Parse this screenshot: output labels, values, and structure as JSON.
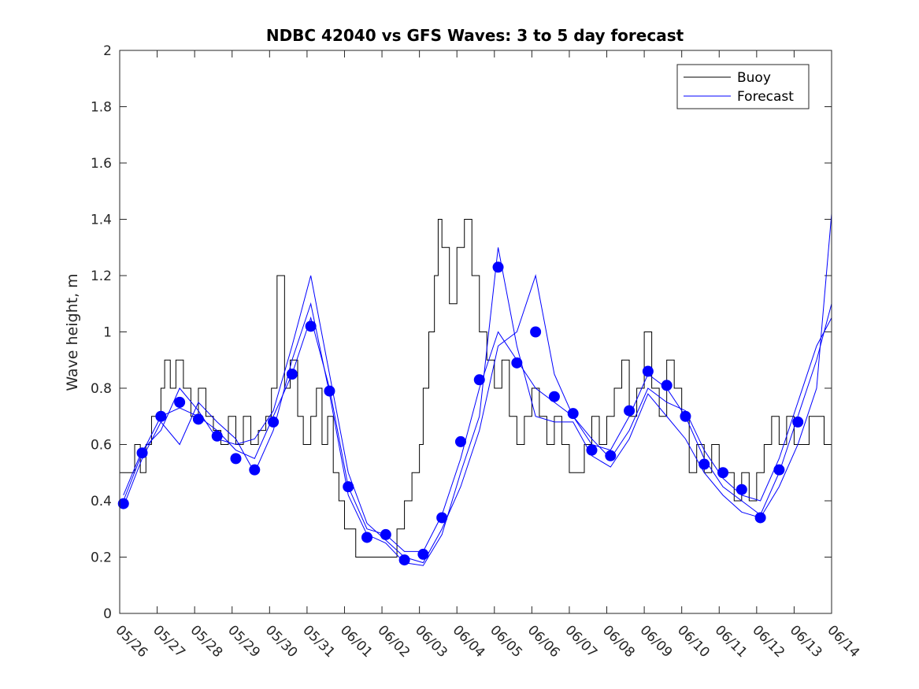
{
  "chart_data": {
    "type": "line",
    "title": "NDBC 42040 vs GFS Waves: 3 to 5 day forecast",
    "xlabel": "",
    "ylabel": "Wave height, m",
    "ylim": [
      0,
      2
    ],
    "yticks": [
      0,
      0.2,
      0.4,
      0.6,
      0.8,
      1,
      1.2,
      1.4,
      1.6,
      1.8,
      2
    ],
    "ytick_labels": [
      "0",
      "0.2",
      "0.4",
      "0.6",
      "0.8",
      "1",
      "1.2",
      "1.4",
      "1.6",
      "1.8",
      "2"
    ],
    "xlim": [
      0,
      19
    ],
    "xtick_labels": [
      "05/26",
      "05/27",
      "05/28",
      "05/29",
      "05/30",
      "05/31",
      "06/01",
      "06/02",
      "06/03",
      "06/04",
      "06/05",
      "06/06",
      "06/07",
      "06/08",
      "06/09",
      "06/10",
      "06/11",
      "06/12",
      "06/13",
      "06/14"
    ],
    "legend": {
      "position": "top-right",
      "entries": [
        {
          "label": "Buoy",
          "color": "#000000"
        },
        {
          "label": "Forecast",
          "color": "#0000ff"
        }
      ]
    },
    "colors": {
      "buoy": "#000000",
      "forecast": "#0000ff"
    },
    "grid": false,
    "series": [
      {
        "name": "Buoy",
        "color": "#000000",
        "x": [
          0,
          0.3,
          0.4,
          0.55,
          0.7,
          0.85,
          1.0,
          1.1,
          1.2,
          1.35,
          1.5,
          1.7,
          1.9,
          2.1,
          2.3,
          2.5,
          2.7,
          2.9,
          3.1,
          3.3,
          3.5,
          3.7,
          3.9,
          4.05,
          4.2,
          4.4,
          4.55,
          4.75,
          4.9,
          5.1,
          5.25,
          5.4,
          5.55,
          5.7,
          5.85,
          6.0,
          6.15,
          6.3,
          6.45,
          6.6,
          6.8,
          7.0,
          7.2,
          7.4,
          7.6,
          7.8,
          8.0,
          8.1,
          8.25,
          8.4,
          8.5,
          8.6,
          8.8,
          9.0,
          9.2,
          9.4,
          9.6,
          9.8,
          10.0,
          10.2,
          10.4,
          10.6,
          10.8,
          11.0,
          11.2,
          11.4,
          11.6,
          11.8,
          12.0,
          12.2,
          12.4,
          12.6,
          12.8,
          13.0,
          13.2,
          13.4,
          13.6,
          13.8,
          14.0,
          14.2,
          14.4,
          14.6,
          14.8,
          15.0,
          15.2,
          15.4,
          15.6,
          15.8,
          16.0,
          16.2,
          16.4,
          16.6,
          16.8,
          17.0,
          17.2,
          17.4,
          17.6,
          17.8,
          18.0,
          18.2,
          18.4,
          18.6,
          18.8,
          19.0
        ],
        "y": [
          0.5,
          0.5,
          0.6,
          0.5,
          0.6,
          0.7,
          0.7,
          0.8,
          0.9,
          0.8,
          0.9,
          0.8,
          0.7,
          0.8,
          0.7,
          0.65,
          0.6,
          0.7,
          0.6,
          0.7,
          0.6,
          0.65,
          0.7,
          0.8,
          1.2,
          0.8,
          0.9,
          0.7,
          0.6,
          0.7,
          0.8,
          0.6,
          0.7,
          0.5,
          0.4,
          0.3,
          0.3,
          0.2,
          0.2,
          0.2,
          0.2,
          0.2,
          0.2,
          0.3,
          0.4,
          0.5,
          0.6,
          0.8,
          1.0,
          1.2,
          1.4,
          1.3,
          1.1,
          1.3,
          1.4,
          1.2,
          1.0,
          0.9,
          0.8,
          0.9,
          0.7,
          0.6,
          0.7,
          0.8,
          0.7,
          0.6,
          0.7,
          0.6,
          0.5,
          0.5,
          0.6,
          0.7,
          0.6,
          0.7,
          0.8,
          0.9,
          0.7,
          0.8,
          1.0,
          0.8,
          0.7,
          0.9,
          0.8,
          0.7,
          0.5,
          0.6,
          0.5,
          0.6,
          0.5,
          0.5,
          0.4,
          0.5,
          0.4,
          0.5,
          0.6,
          0.7,
          0.6,
          0.7,
          0.6,
          0.6,
          0.7,
          0.7,
          0.6,
          0.6
        ]
      },
      {
        "name": "Forecast",
        "color": "#0000ff",
        "x": [
          0.1,
          0.6,
          1.1,
          1.6,
          2.1,
          2.6,
          3.1,
          3.6,
          4.1,
          4.6,
          5.1,
          5.6,
          6.1,
          6.6,
          7.1,
          7.6,
          8.1,
          8.6,
          9.1,
          9.6,
          10.1,
          10.6,
          11.1,
          11.6,
          12.1,
          12.6,
          13.1,
          13.6,
          14.1,
          14.6,
          15.1,
          15.6,
          16.1,
          16.6,
          17.1,
          17.6,
          18.1,
          18.6,
          19.0
        ],
        "y": [
          0.4,
          0.57,
          0.7,
          0.73,
          0.7,
          0.65,
          0.58,
          0.55,
          0.7,
          0.85,
          1.05,
          0.8,
          0.45,
          0.3,
          0.28,
          0.22,
          0.22,
          0.35,
          0.55,
          0.8,
          1.0,
          0.9,
          0.8,
          0.75,
          0.7,
          0.6,
          0.58,
          0.7,
          0.85,
          0.8,
          0.7,
          0.55,
          0.45,
          0.4,
          0.35,
          0.5,
          0.7,
          0.9,
          1.1
        ]
      },
      {
        "name": "Forecast",
        "color": "#0000ff",
        "x": [
          0.1,
          0.6,
          1.1,
          1.6,
          2.1,
          2.6,
          3.1,
          3.6,
          4.1,
          4.6,
          5.1,
          5.6,
          6.1,
          6.6,
          7.1,
          7.6,
          8.1,
          8.6,
          9.1,
          9.6,
          10.1,
          10.6,
          11.1,
          11.6,
          12.1,
          12.6,
          13.1,
          13.6,
          14.1,
          14.6,
          15.1,
          15.6,
          16.1,
          16.6,
          17.1,
          17.6,
          18.1,
          18.6,
          19.0
        ],
        "y": [
          0.42,
          0.58,
          0.65,
          0.8,
          0.72,
          0.62,
          0.6,
          0.62,
          0.72,
          0.95,
          1.2,
          0.85,
          0.5,
          0.32,
          0.26,
          0.2,
          0.18,
          0.3,
          0.45,
          0.65,
          0.95,
          1.0,
          1.2,
          0.85,
          0.7,
          0.62,
          0.55,
          0.65,
          0.8,
          0.75,
          0.72,
          0.58,
          0.48,
          0.42,
          0.4,
          0.55,
          0.75,
          0.95,
          1.05
        ]
      },
      {
        "name": "Forecast",
        "color": "#0000ff",
        "x": [
          0.1,
          0.6,
          1.1,
          1.6,
          2.1,
          2.6,
          3.1,
          3.6,
          4.1,
          4.6,
          5.1,
          5.6,
          6.1,
          6.6,
          7.1,
          7.6,
          8.1,
          8.6,
          9.1,
          9.6,
          10.1,
          10.6,
          11.1,
          11.6,
          12.1,
          12.6,
          13.1,
          13.6,
          14.1,
          14.6,
          15.1,
          15.6,
          16.1,
          16.6,
          17.1,
          17.6,
          18.1,
          18.6,
          19.0
        ],
        "y": [
          0.38,
          0.55,
          0.68,
          0.6,
          0.75,
          0.68,
          0.62,
          0.5,
          0.65,
          0.9,
          1.1,
          0.78,
          0.42,
          0.28,
          0.25,
          0.18,
          0.17,
          0.28,
          0.5,
          0.7,
          1.3,
          0.95,
          0.7,
          0.68,
          0.68,
          0.56,
          0.52,
          0.62,
          0.78,
          0.7,
          0.62,
          0.5,
          0.42,
          0.36,
          0.34,
          0.45,
          0.6,
          0.8,
          1.42
        ]
      }
    ],
    "markers": {
      "name": "",
      "color": "#0000ff",
      "x": [
        0.1,
        0.6,
        1.1,
        1.6,
        2.1,
        2.6,
        3.1,
        3.6,
        4.1,
        4.6,
        5.1,
        5.6,
        6.1,
        6.6,
        7.1,
        7.6,
        8.1,
        8.6,
        9.1,
        9.6,
        10.1,
        10.6,
        11.1,
        11.6,
        12.1,
        12.6,
        13.1,
        13.6,
        14.1,
        14.6,
        15.1,
        15.6,
        16.1,
        16.6,
        17.1,
        17.6,
        18.1
      ],
      "y": [
        0.39,
        0.57,
        0.7,
        0.75,
        0.69,
        0.63,
        0.55,
        0.51,
        0.68,
        0.85,
        1.02,
        0.79,
        0.45,
        0.27,
        0.28,
        0.19,
        0.21,
        0.34,
        0.61,
        0.83,
        1.23,
        0.89,
        1.0,
        0.77,
        0.71,
        0.58,
        0.56,
        0.72,
        0.86,
        0.81,
        0.7,
        0.53,
        0.5,
        0.44,
        0.34,
        0.51,
        0.68
      ]
    }
  }
}
